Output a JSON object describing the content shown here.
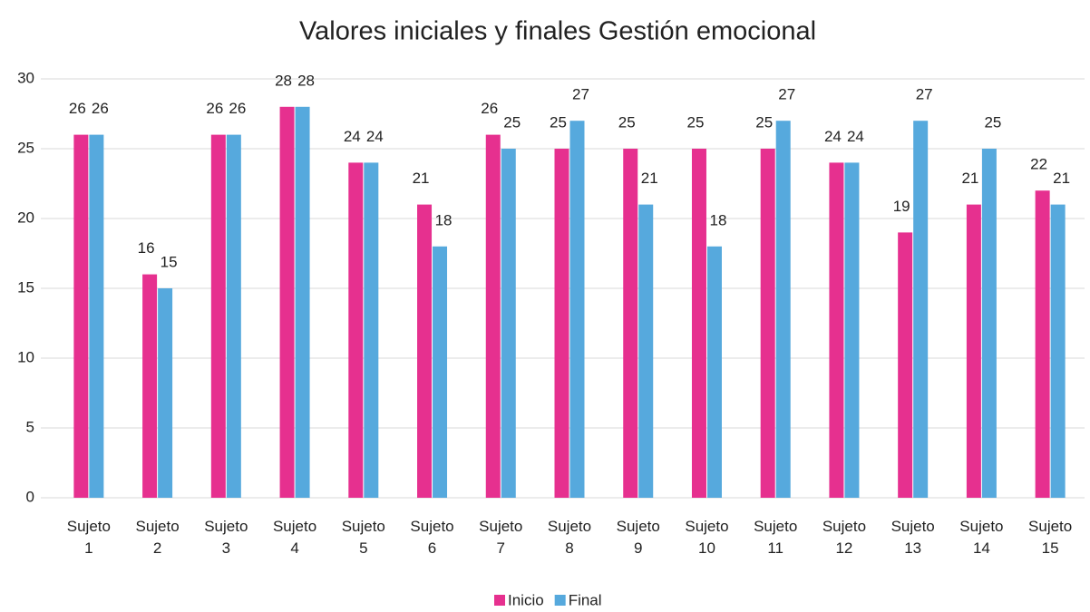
{
  "chart_data": {
    "type": "bar",
    "title": "Valores iniciales y finales  Gestión emocional",
    "categories": [
      "Sujeto 1",
      "Sujeto 2",
      "Sujeto 3",
      "Sujeto 4",
      "Sujeto 5",
      "Sujeto 6",
      "Sujeto 7",
      "Sujeto 8",
      "Sujeto 9",
      "Sujeto 10",
      "Sujeto 11",
      "Sujeto 12",
      "Sujeto 13",
      "Sujeto 14",
      "Sujeto 15"
    ],
    "series": [
      {
        "name": "Inicio",
        "color": "#e6308f",
        "values": [
          26,
          16,
          26,
          28,
          24,
          21,
          26,
          25,
          25,
          25,
          25,
          24,
          19,
          21,
          22
        ]
      },
      {
        "name": "Final",
        "color": "#56a9dd",
        "values": [
          26,
          15,
          26,
          28,
          24,
          18,
          25,
          27,
          21,
          18,
          27,
          24,
          27,
          25,
          21
        ]
      }
    ],
    "ylim": [
      0,
      30
    ],
    "yticks": [
      0,
      5,
      10,
      15,
      20,
      25,
      30
    ],
    "grid": true,
    "legend": "bottom"
  }
}
